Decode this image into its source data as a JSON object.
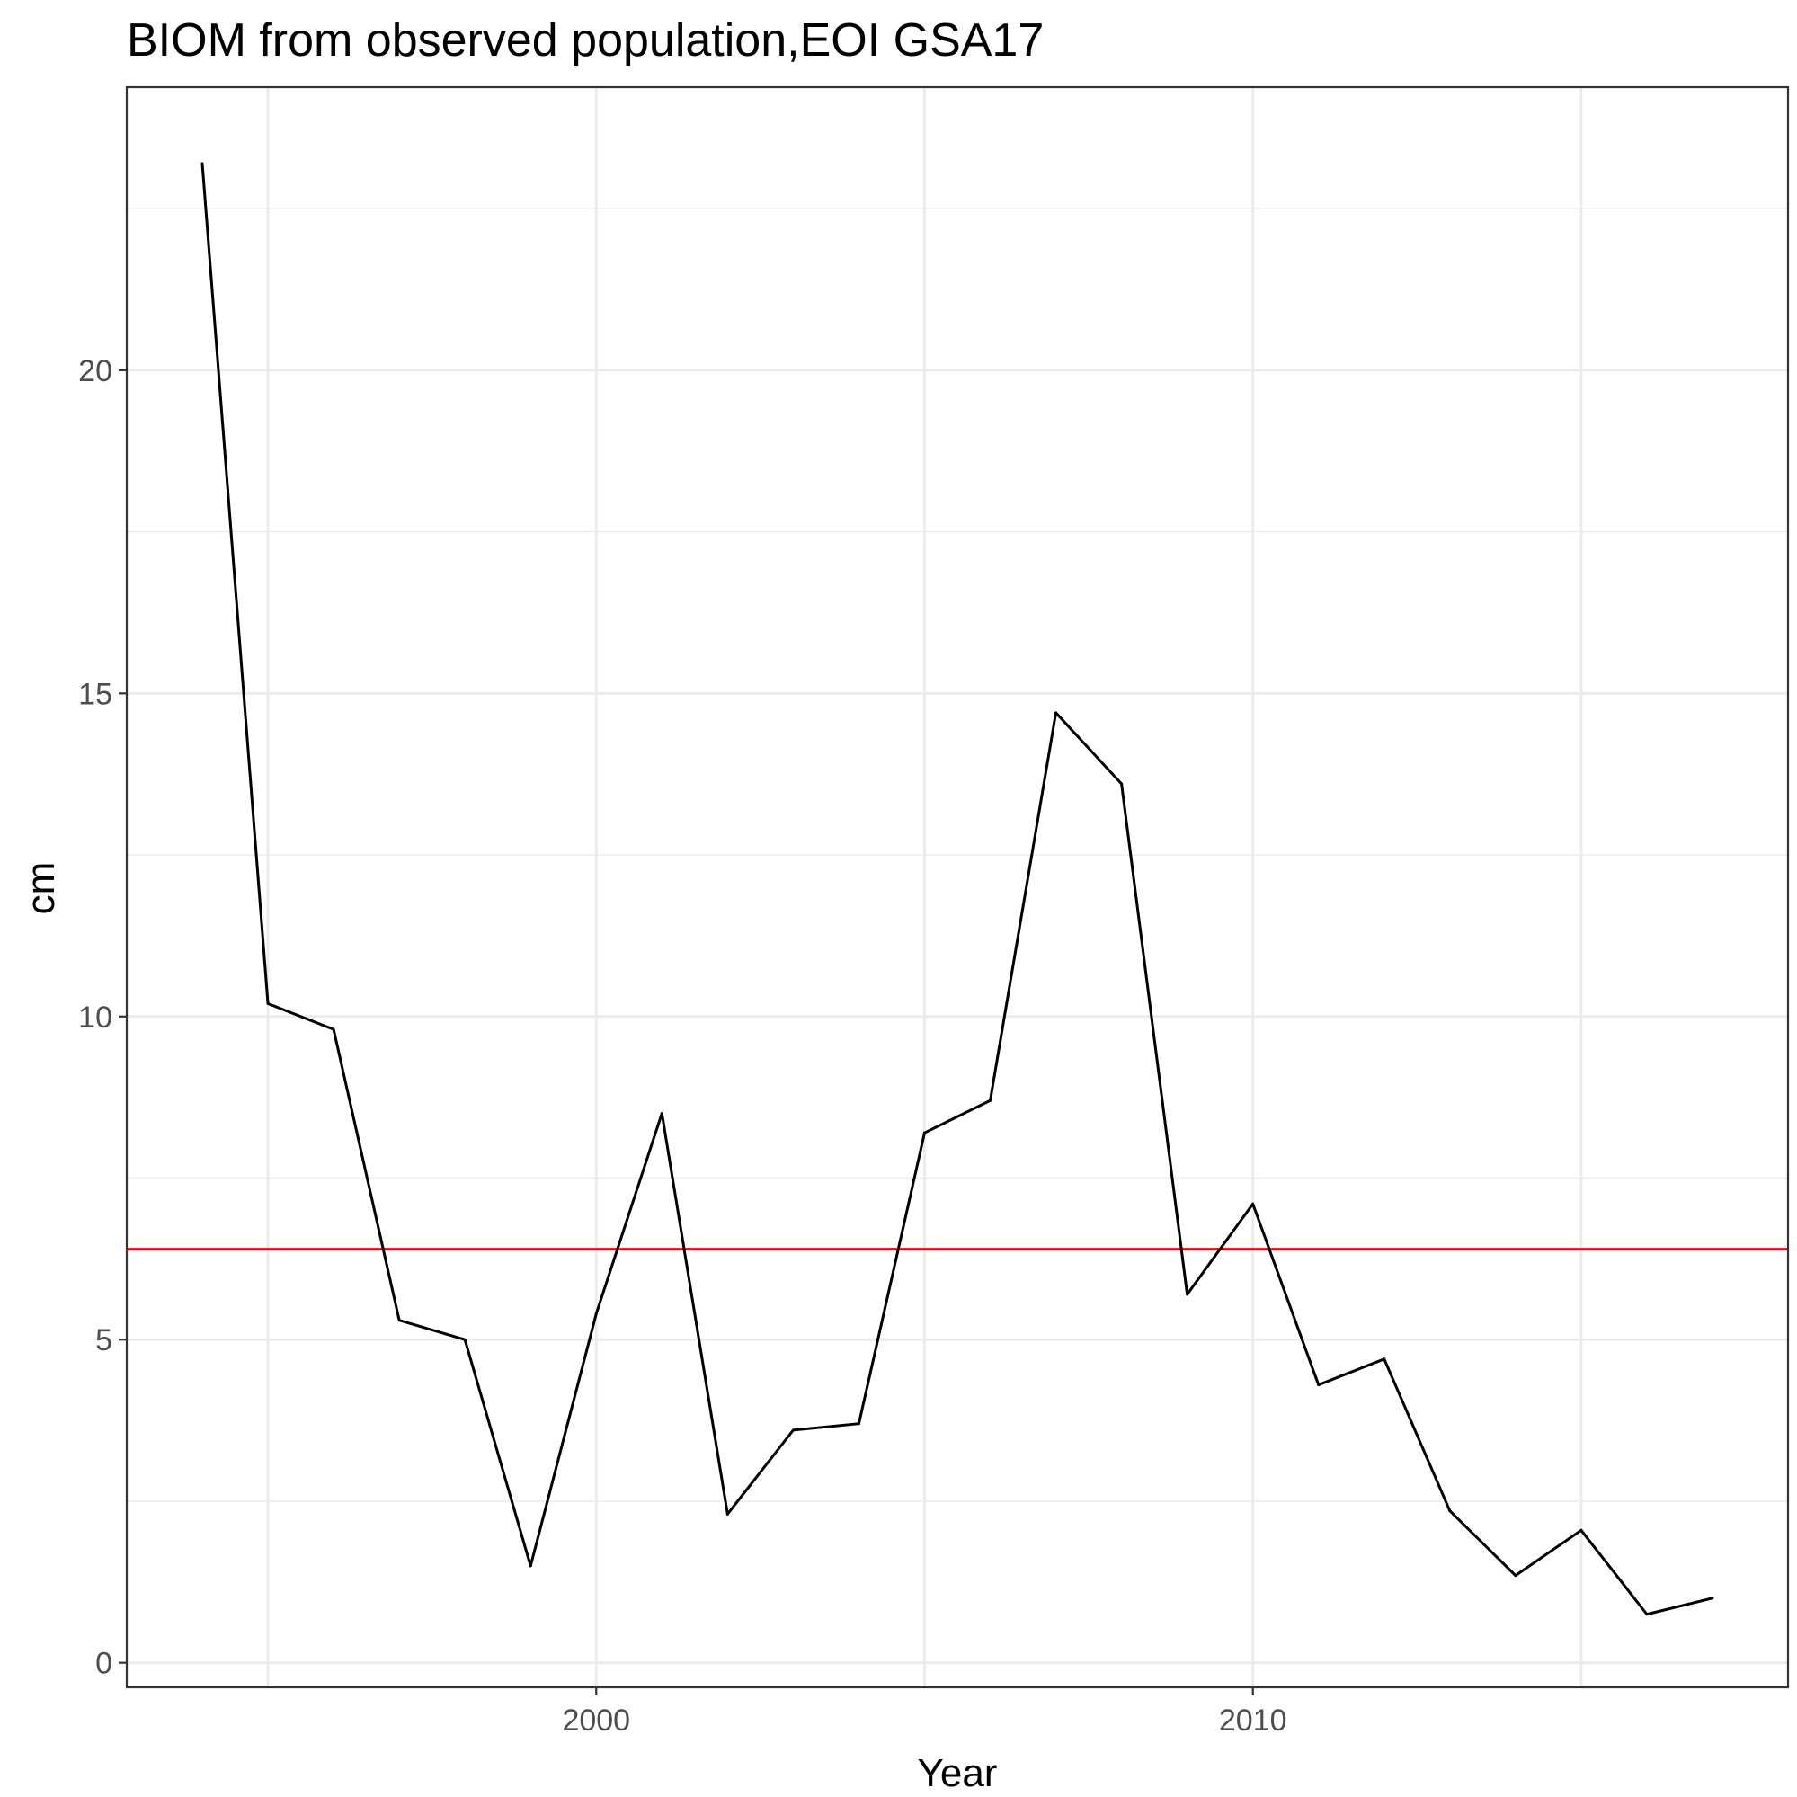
{
  "chart_data": {
    "type": "line",
    "title": "BIOM from observed population,EOI GSA17",
    "xlabel": "Year",
    "ylabel": "cm",
    "xlim": [
      1992.85,
      2018.15
    ],
    "ylim": [
      -0.38,
      24.38
    ],
    "x_ticks": [
      2000,
      2010
    ],
    "x_minor_ticks": [
      1995,
      2005,
      2015
    ],
    "y_ticks": [
      0,
      5,
      10,
      15,
      20
    ],
    "y_minor_ticks": [
      2.5,
      7.5,
      12.5,
      17.5,
      22.5
    ],
    "grid": true,
    "series": [
      {
        "color": "#000000",
        "x": [
          1994,
          1995,
          1996,
          1997,
          1998,
          1999,
          2000,
          2001,
          2002,
          2003,
          2004,
          2005,
          2006,
          2007,
          2008,
          2009,
          2010,
          2011,
          2012,
          2013,
          2014,
          2015,
          2016,
          2017
        ],
        "values": [
          23.2,
          10.2,
          9.8,
          5.3,
          5.0,
          1.5,
          5.4,
          8.5,
          2.3,
          3.6,
          3.7,
          8.2,
          8.7,
          14.7,
          13.6,
          5.7,
          7.1,
          4.3,
          4.7,
          2.35,
          1.35,
          2.05,
          0.75,
          1.0
        ]
      }
    ],
    "reference_lines": [
      {
        "axis": "y",
        "value": 6.4,
        "color": "#ff0000"
      }
    ]
  }
}
